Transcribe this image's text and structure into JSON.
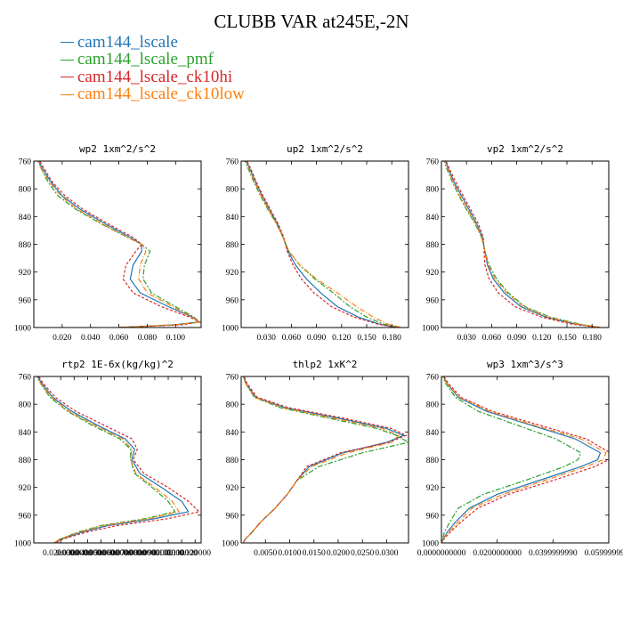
{
  "figure_title": "CLUBB VAR at245E,-2N",
  "legend": [
    {
      "label": "cam144_lscale",
      "color": "#1f77b4",
      "dash": ""
    },
    {
      "label": "cam144_lscale_pmf",
      "color": "#2ca02c",
      "dash": "6,2,2,2"
    },
    {
      "label": "cam144_lscale_ck10hi",
      "color": "#d62728",
      "dash": "3,2"
    },
    {
      "label": "cam144_lscale_ck10low",
      "color": "#ff7f0e",
      "dash": "6,2,1,2"
    }
  ],
  "chart_data": [
    {
      "type": "line",
      "title": "wp2  1xm^2/s^2",
      "xlim": [
        0.0,
        0.118
      ],
      "xticks": [
        0.02,
        0.04,
        0.06,
        0.08,
        0.1
      ],
      "xticklabels": [
        "0.020",
        "0.040",
        "0.060",
        "0.080",
        "0.100"
      ],
      "ylim": [
        760,
        1000
      ],
      "yticks": [
        760,
        800,
        840,
        880,
        920,
        960,
        1000
      ],
      "yticklabels": [
        "760",
        "800",
        "840",
        "880",
        "920",
        "960",
        "1000"
      ],
      "y": [
        755,
        770,
        790,
        810,
        830,
        850,
        870,
        880,
        890,
        910,
        930,
        950,
        970,
        985,
        992,
        996,
        1000
      ],
      "series": [
        {
          "name": "cam144_lscale",
          "values": [
            0.002,
            0.006,
            0.012,
            0.02,
            0.033,
            0.05,
            0.068,
            0.076,
            0.076,
            0.07,
            0.068,
            0.075,
            0.095,
            0.112,
            0.116,
            0.1,
            0.06
          ]
        },
        {
          "name": "cam144_lscale_pmf",
          "values": [
            0.002,
            0.005,
            0.01,
            0.017,
            0.03,
            0.047,
            0.066,
            0.076,
            0.082,
            0.078,
            0.077,
            0.083,
            0.1,
            0.113,
            0.117,
            0.1,
            0.06
          ]
        },
        {
          "name": "cam144_lscale_ck10hi",
          "values": [
            0.003,
            0.007,
            0.013,
            0.022,
            0.035,
            0.052,
            0.07,
            0.076,
            0.072,
            0.065,
            0.063,
            0.07,
            0.09,
            0.11,
            0.117,
            0.105,
            0.06
          ]
        },
        {
          "name": "cam144_lscale_ck10low",
          "values": [
            0.002,
            0.005,
            0.011,
            0.019,
            0.031,
            0.048,
            0.066,
            0.076,
            0.079,
            0.075,
            0.074,
            0.08,
            0.098,
            0.112,
            0.117,
            0.1,
            0.06
          ]
        }
      ]
    },
    {
      "type": "line",
      "title": "up2  1xm^2/s^2",
      "xlim": [
        0.0,
        0.2
      ],
      "xticks": [
        0.03,
        0.06,
        0.09,
        0.12,
        0.15,
        0.18
      ],
      "xticklabels": [
        "0.030",
        "0.060",
        "0.090",
        "0.120",
        "0.150",
        "0.180"
      ],
      "ylim": [
        760,
        1000
      ],
      "yticks": [
        760,
        800,
        840,
        880,
        920,
        960,
        1000
      ],
      "yticklabels": [
        "760",
        "800",
        "840",
        "880",
        "920",
        "960",
        "1000"
      ],
      "y": [
        755,
        770,
        790,
        810,
        830,
        850,
        870,
        890,
        910,
        930,
        950,
        970,
        985,
        995,
        1000
      ],
      "series": [
        {
          "name": "cam144_lscale",
          "values": [
            0.004,
            0.01,
            0.017,
            0.025,
            0.034,
            0.043,
            0.05,
            0.056,
            0.065,
            0.078,
            0.095,
            0.115,
            0.14,
            0.165,
            0.185
          ]
        },
        {
          "name": "cam144_lscale_pmf",
          "values": [
            0.003,
            0.008,
            0.015,
            0.023,
            0.032,
            0.042,
            0.05,
            0.057,
            0.07,
            0.088,
            0.11,
            0.13,
            0.15,
            0.17,
            0.19
          ]
        },
        {
          "name": "cam144_lscale_ck10hi",
          "values": [
            0.005,
            0.011,
            0.018,
            0.026,
            0.035,
            0.044,
            0.051,
            0.055,
            0.062,
            0.072,
            0.087,
            0.108,
            0.135,
            0.163,
            0.185
          ]
        },
        {
          "name": "cam144_lscale_ck10low",
          "values": [
            0.004,
            0.009,
            0.016,
            0.024,
            0.033,
            0.042,
            0.05,
            0.057,
            0.07,
            0.09,
            0.115,
            0.138,
            0.158,
            0.175,
            0.192
          ]
        }
      ]
    },
    {
      "type": "line",
      "title": "vp2  1xm^2/s^2",
      "xlim": [
        0.0,
        0.2
      ],
      "xticks": [
        0.03,
        0.06,
        0.09,
        0.12,
        0.15,
        0.18
      ],
      "xticklabels": [
        "0.030",
        "0.060",
        "0.090",
        "0.120",
        "0.150",
        "0.180"
      ],
      "ylim": [
        760,
        1000
      ],
      "yticks": [
        760,
        800,
        840,
        880,
        920,
        960,
        1000
      ],
      "yticklabels": [
        "760",
        "800",
        "840",
        "880",
        "920",
        "960",
        "1000"
      ],
      "y": [
        755,
        770,
        790,
        810,
        830,
        850,
        870,
        890,
        910,
        930,
        950,
        970,
        985,
        995,
        1000
      ],
      "series": [
        {
          "name": "cam144_lscale",
          "values": [
            0.003,
            0.008,
            0.015,
            0.024,
            0.033,
            0.042,
            0.049,
            0.052,
            0.055,
            0.062,
            0.075,
            0.095,
            0.125,
            0.16,
            0.19
          ]
        },
        {
          "name": "cam144_lscale_pmf",
          "values": [
            0.002,
            0.006,
            0.013,
            0.021,
            0.03,
            0.04,
            0.048,
            0.052,
            0.057,
            0.066,
            0.08,
            0.1,
            0.13,
            0.165,
            0.19
          ]
        },
        {
          "name": "cam144_lscale_ck10hi",
          "values": [
            0.004,
            0.009,
            0.017,
            0.026,
            0.035,
            0.044,
            0.05,
            0.051,
            0.052,
            0.057,
            0.068,
            0.088,
            0.12,
            0.155,
            0.19
          ]
        },
        {
          "name": "cam144_lscale_ck10low",
          "values": [
            0.003,
            0.007,
            0.014,
            0.022,
            0.031,
            0.041,
            0.048,
            0.052,
            0.056,
            0.064,
            0.078,
            0.098,
            0.128,
            0.162,
            0.19
          ]
        }
      ]
    },
    {
      "type": "line",
      "title": "rtp2  1E-6x(kg/kg)^2",
      "xlim": [
        0.0,
        0.1245
      ],
      "xticks": [
        0.02,
        0.03,
        0.04,
        0.05,
        0.06,
        0.07,
        0.08,
        0.09,
        0.1,
        0.11,
        0.12
      ],
      "xticklabels": [
        "0.0200000",
        "0.0300000",
        "0.0400000",
        "0.0500000",
        "0.0600000",
        "0.0700000",
        "0.0800000",
        "0.0900000",
        "0.100000",
        "0.110000",
        "0.120000"
      ],
      "ylim": [
        760,
        1000
      ],
      "yticks": [
        760,
        800,
        840,
        880,
        920,
        960,
        1000
      ],
      "yticklabels": [
        "760",
        "800",
        "840",
        "880",
        "920",
        "960",
        "1000"
      ],
      "y": [
        755,
        770,
        790,
        810,
        830,
        850,
        865,
        880,
        900,
        920,
        940,
        955,
        965,
        975,
        985,
        995,
        1000
      ],
      "series": [
        {
          "name": "cam144_lscale",
          "values": [
            0.001,
            0.006,
            0.014,
            0.028,
            0.047,
            0.068,
            0.075,
            0.073,
            0.079,
            0.095,
            0.11,
            0.115,
            0.09,
            0.055,
            0.035,
            0.02,
            0.015
          ]
        },
        {
          "name": "cam144_lscale_pmf",
          "values": [
            0.001,
            0.005,
            0.012,
            0.025,
            0.043,
            0.064,
            0.072,
            0.072,
            0.075,
            0.088,
            0.1,
            0.105,
            0.083,
            0.05,
            0.032,
            0.019,
            0.015
          ]
        },
        {
          "name": "cam144_lscale_ck10hi",
          "values": [
            0.002,
            0.007,
            0.016,
            0.031,
            0.052,
            0.073,
            0.077,
            0.074,
            0.082,
            0.1,
            0.115,
            0.123,
            0.1,
            0.062,
            0.038,
            0.021,
            0.016
          ]
        },
        {
          "name": "cam144_lscale_ck10low",
          "values": [
            0.001,
            0.005,
            0.013,
            0.026,
            0.045,
            0.066,
            0.073,
            0.072,
            0.076,
            0.09,
            0.103,
            0.108,
            0.086,
            0.052,
            0.033,
            0.019,
            0.015
          ]
        }
      ]
    },
    {
      "type": "line",
      "title": "thlp2  1xK^2",
      "xlim": [
        0.0,
        0.0345
      ],
      "xticks": [
        0.005,
        0.01,
        0.015,
        0.02,
        0.025,
        0.03
      ],
      "xticklabels": [
        "0.0050",
        "0.0100",
        "0.0150",
        "0.0200",
        "0.0250",
        "0.0300"
      ],
      "ylim": [
        760,
        1000
      ],
      "yticks": [
        760,
        800,
        840,
        880,
        920,
        960,
        1000
      ],
      "yticklabels": [
        "760",
        "800",
        "840",
        "880",
        "920",
        "960",
        "1000"
      ],
      "y": [
        755,
        770,
        790,
        805,
        820,
        835,
        845,
        855,
        870,
        890,
        910,
        930,
        950,
        970,
        985,
        995,
        1000
      ],
      "series": [
        {
          "name": "cam144_lscale",
          "values": [
            0.0002,
            0.001,
            0.003,
            0.009,
            0.02,
            0.03,
            0.0335,
            0.03,
            0.021,
            0.014,
            0.0115,
            0.0095,
            0.007,
            0.004,
            0.0022,
            0.0008,
            0.0004
          ]
        },
        {
          "name": "cam144_lscale_pmf",
          "values": [
            0.0002,
            0.0009,
            0.0027,
            0.008,
            0.018,
            0.028,
            0.032,
            0.0345,
            0.025,
            0.016,
            0.0115,
            0.0095,
            0.007,
            0.004,
            0.0022,
            0.0008,
            0.0004
          ]
        },
        {
          "name": "cam144_lscale_ck10hi",
          "values": [
            0.0003,
            0.0012,
            0.0033,
            0.0098,
            0.021,
            0.031,
            0.034,
            0.0305,
            0.0205,
            0.0135,
            0.0115,
            0.0095,
            0.007,
            0.004,
            0.0022,
            0.0008,
            0.0004
          ]
        },
        {
          "name": "cam144_lscale_ck10low",
          "values": [
            0.0002,
            0.0009,
            0.0028,
            0.0085,
            0.019,
            0.029,
            0.0325,
            0.031,
            0.022,
            0.0145,
            0.0115,
            0.0095,
            0.007,
            0.004,
            0.0022,
            0.0008,
            0.0004
          ]
        }
      ]
    },
    {
      "type": "line",
      "title": "wp3  1xm^3/s^3",
      "xlim": [
        0.0,
        0.0599999
      ],
      "xticks": [
        0.0,
        0.02,
        0.04,
        0.0599999
      ],
      "xticklabels": [
        "0.0000000000",
        "0.0200000000",
        "0.0399999990",
        "0.0599999990"
      ],
      "ylim": [
        760,
        1000
      ],
      "yticks": [
        760,
        800,
        840,
        880,
        920,
        960,
        1000
      ],
      "yticklabels": [
        "760",
        "800",
        "840",
        "880",
        "920",
        "960",
        "1000"
      ],
      "y": [
        755,
        770,
        790,
        810,
        830,
        850,
        870,
        880,
        890,
        910,
        930,
        950,
        970,
        985,
        995,
        1000
      ],
      "series": [
        {
          "name": "cam144_lscale",
          "values": [
            0.0,
            0.002,
            0.006,
            0.016,
            0.032,
            0.048,
            0.057,
            0.056,
            0.05,
            0.035,
            0.02,
            0.01,
            0.005,
            0.002,
            0.0005,
            0.0
          ]
        },
        {
          "name": "cam144_lscale_pmf",
          "values": [
            0.0,
            0.0015,
            0.005,
            0.013,
            0.027,
            0.041,
            0.05,
            0.049,
            0.044,
            0.03,
            0.015,
            0.006,
            0.003,
            0.001,
            0.0003,
            0.0
          ]
        },
        {
          "name": "cam144_lscale_ck10hi",
          "values": [
            0.0,
            0.0025,
            0.007,
            0.018,
            0.035,
            0.052,
            0.0605,
            0.06,
            0.055,
            0.04,
            0.024,
            0.013,
            0.007,
            0.003,
            0.0008,
            0.0
          ]
        },
        {
          "name": "cam144_lscale_ck10low",
          "values": [
            0.0,
            0.002,
            0.0065,
            0.017,
            0.033,
            0.05,
            0.059,
            0.058,
            0.052,
            0.037,
            0.022,
            0.011,
            0.006,
            0.0025,
            0.0006,
            0.0
          ]
        }
      ]
    }
  ]
}
